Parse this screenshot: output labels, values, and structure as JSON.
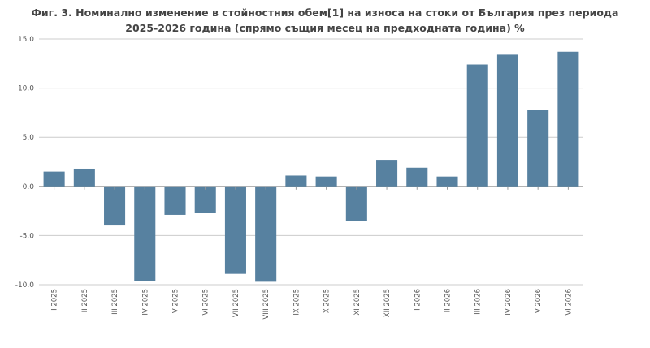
{
  "chart_data": {
    "type": "bar",
    "title_line1": "Фиг. 3. Номинално изменение в стойностния обем[1] на износа на стоки от България през периода",
    "title_line2": "2025-2026 година (спрямо същия месец на предходната година) %",
    "xlabel": "",
    "ylabel": "",
    "ylim": [
      -10,
      15
    ],
    "yticks": [
      "-10.0",
      "-5.0",
      "0.0",
      "5.0",
      "10.0",
      "15.0"
    ],
    "ytick_values": [
      -10,
      -5,
      0,
      5,
      10,
      15
    ],
    "grid": true,
    "bar_color": "#5781a0",
    "categories": [
      "I 2025",
      "II 2025",
      "III 2025",
      "IV 2025",
      "V 2025",
      "VI 2025",
      "VII 2025",
      "VIII 2025",
      "IX 2025",
      "X 2025",
      "XI 2025",
      "XII 2025",
      "I 2026",
      "II 2026",
      "III 2026",
      "IV 2026",
      "V 2026",
      "VI 2026"
    ],
    "values": [
      1.5,
      1.8,
      -3.9,
      -9.6,
      -2.9,
      -2.7,
      -8.9,
      -9.7,
      1.1,
      1.0,
      -3.5,
      2.7,
      1.9,
      1.0,
      12.4,
      13.4,
      7.8,
      13.7
    ]
  }
}
